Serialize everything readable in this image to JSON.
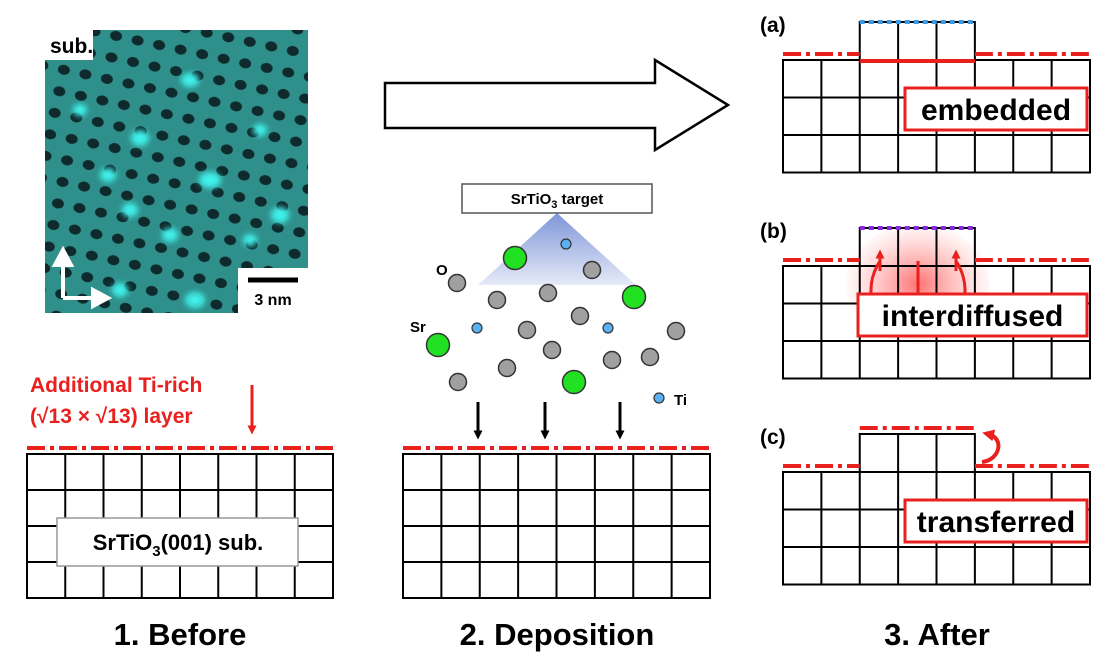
{
  "stm_image": {
    "label": "sub.",
    "scale_bar": "3 nm"
  },
  "before": {
    "note_line1": "Additional Ti-rich",
    "note_line2": "(√13 × √13) layer",
    "substrate": {
      "base": "SrTiO",
      "sub": "3",
      "rest": "(001) sub."
    },
    "caption": "1. Before"
  },
  "deposition": {
    "target": {
      "base": "SrTiO",
      "sub": "3",
      "rest": " target"
    },
    "species": {
      "o": "O",
      "sr": "Sr",
      "ti": "Ti"
    },
    "caption": "2. Deposition"
  },
  "after": {
    "panels": [
      {
        "tag": "(a)",
        "label": "embedded"
      },
      {
        "tag": "(b)",
        "label": "interdiffused"
      },
      {
        "tag": "(c)",
        "label": "transferred"
      }
    ],
    "caption": "3. After"
  }
}
